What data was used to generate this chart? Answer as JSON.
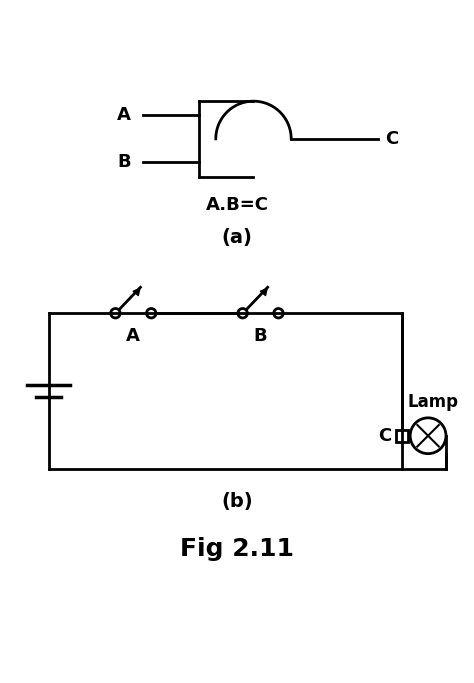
{
  "title": "Fig 2.11",
  "label_a": "A",
  "label_b": "B",
  "label_c": "C",
  "equation": "A.B=C",
  "sub_a": "(a)",
  "sub_b": "(b)",
  "lamp_label": "Lamp",
  "switch_a_label": "A",
  "switch_b_label": "B",
  "bg_color": "#ffffff",
  "line_color": "#000000",
  "line_width": 2.0,
  "font_size_labels": 13,
  "font_size_eq": 13,
  "font_size_sub": 14,
  "font_size_title": 18
}
